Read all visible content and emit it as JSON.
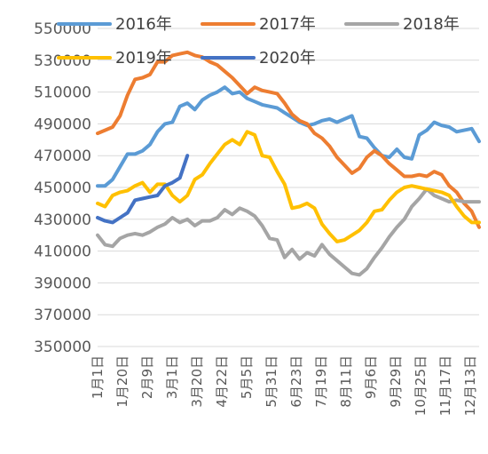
{
  "chart_data": {
    "type": "line",
    "title": "",
    "xlabel": "",
    "ylabel": "",
    "ylim": [
      350000,
      550000
    ],
    "yticks": [
      350000,
      370000,
      390000,
      410000,
      430000,
      450000,
      470000,
      490000,
      510000,
      530000,
      550000
    ],
    "grid": "horizontal",
    "legend_position": "top",
    "x_tick_labels": [
      "1月1日",
      "1月20日",
      "2月9日",
      "3月1日",
      "3月20日",
      "4月22日",
      "5月5日",
      "5月31日",
      "6月23日",
      "7月19日",
      "8月11日",
      "9月6日",
      "9月29日",
      "10月25日",
      "11月17日",
      "12月13日"
    ],
    "x_range": [
      0,
      51
    ],
    "series": [
      {
        "name": "2016年",
        "color": "#5B9BD5",
        "x": [
          0,
          1,
          2,
          3,
          4,
          5,
          6,
          7,
          8,
          9,
          10,
          11,
          12,
          13,
          14,
          15,
          16,
          17,
          18,
          19,
          20,
          21,
          22,
          23,
          24,
          25,
          26,
          27,
          28,
          29,
          30,
          31,
          32,
          33,
          34,
          35,
          36,
          37,
          38,
          39,
          40,
          41,
          42,
          43,
          44,
          45,
          46,
          47,
          48,
          49,
          50,
          51
        ],
        "values": [
          451000,
          451000,
          455000,
          463000,
          471000,
          471000,
          473000,
          477000,
          485000,
          490000,
          491000,
          501000,
          503000,
          499000,
          505000,
          508000,
          510000,
          513000,
          509000,
          510000,
          506000,
          504000,
          502000,
          501000,
          500000,
          497000,
          494000,
          491000,
          489000,
          490000,
          492000,
          493000,
          491000,
          493000,
          495000,
          482000,
          481000,
          475000,
          470000,
          469000,
          474000,
          469000,
          468000,
          483000,
          486000,
          491000,
          489000,
          488000,
          485000,
          486000,
          487000,
          479000
        ]
      },
      {
        "name": "2017年",
        "color": "#ED7D31",
        "x": [
          0,
          1,
          2,
          3,
          4,
          5,
          6,
          7,
          8,
          9,
          10,
          11,
          12,
          13,
          14,
          15,
          16,
          17,
          18,
          19,
          20,
          21,
          22,
          23,
          24,
          25,
          26,
          27,
          28,
          29,
          30,
          31,
          32,
          33,
          34,
          35,
          36,
          37,
          38,
          39,
          40,
          41,
          42,
          43,
          44,
          45,
          46,
          47,
          48,
          49,
          50,
          51
        ],
        "values": [
          484000,
          486000,
          488000,
          495000,
          508000,
          518000,
          519000,
          521000,
          529000,
          529000,
          533000,
          534000,
          535000,
          533000,
          532000,
          529000,
          527000,
          523000,
          519000,
          514000,
          509000,
          513000,
          511000,
          510000,
          509000,
          503000,
          496000,
          492000,
          490000,
          484000,
          481000,
          476000,
          469000,
          464000,
          459000,
          462000,
          469000,
          473000,
          470000,
          465000,
          461000,
          457000,
          457000,
          458000,
          457000,
          460000,
          458000,
          451000,
          447000,
          440000,
          435000,
          425000
        ]
      },
      {
        "name": "2018年",
        "color": "#A5A5A5",
        "x": [
          0,
          1,
          2,
          3,
          4,
          5,
          6,
          7,
          8,
          9,
          10,
          11,
          12,
          13,
          14,
          15,
          16,
          17,
          18,
          19,
          20,
          21,
          22,
          23,
          24,
          25,
          26,
          27,
          28,
          29,
          30,
          31,
          32,
          33,
          34,
          35,
          36,
          37,
          38,
          39,
          40,
          41,
          42,
          43,
          44,
          45,
          46,
          47,
          48,
          49,
          50,
          51
        ],
        "values": [
          420000,
          414000,
          413000,
          418000,
          420000,
          421000,
          420000,
          422000,
          425000,
          427000,
          431000,
          428000,
          430000,
          426000,
          429000,
          429000,
          431000,
          436000,
          433000,
          437000,
          435000,
          432000,
          426000,
          418000,
          417000,
          406000,
          411000,
          405000,
          409000,
          407000,
          414000,
          408000,
          404000,
          400000,
          396000,
          395000,
          399000,
          406000,
          412000,
          419000,
          425000,
          430000,
          438000,
          443000,
          449000,
          445000,
          443000,
          441000,
          442000,
          441000,
          441000,
          441000
        ]
      },
      {
        "name": "2019年",
        "color": "#FFC000",
        "x": [
          0,
          1,
          2,
          3,
          4,
          5,
          6,
          7,
          8,
          9,
          10,
          11,
          12,
          13,
          14,
          15,
          16,
          17,
          18,
          19,
          20,
          21,
          22,
          23,
          24,
          25,
          26,
          27,
          28,
          29,
          30,
          31,
          32,
          33,
          34,
          35,
          36,
          37,
          38,
          39,
          40,
          41,
          42,
          43,
          44,
          45,
          46,
          47,
          48,
          49,
          50,
          51
        ],
        "values": [
          440000,
          438000,
          445000,
          447000,
          448000,
          451000,
          453000,
          447000,
          452000,
          452000,
          445000,
          441000,
          445000,
          455000,
          458000,
          465000,
          471000,
          477000,
          480000,
          477000,
          485000,
          483000,
          470000,
          469000,
          460000,
          452000,
          437000,
          438000,
          440000,
          437000,
          427000,
          421000,
          416000,
          417000,
          420000,
          423000,
          428000,
          435000,
          436000,
          442000,
          447000,
          450000,
          451000,
          450000,
          449000,
          448000,
          447000,
          445000,
          438000,
          432000,
          428000,
          428000
        ]
      },
      {
        "name": "2020年",
        "color": "#4472C4",
        "x": [
          0,
          1,
          2,
          3,
          4,
          5,
          6,
          7,
          8,
          9,
          10,
          11,
          12
        ],
        "values": [
          431000,
          429000,
          428000,
          431000,
          434000,
          442000,
          443000,
          444000,
          445000,
          451000,
          453000,
          456000,
          470000
        ]
      }
    ]
  }
}
